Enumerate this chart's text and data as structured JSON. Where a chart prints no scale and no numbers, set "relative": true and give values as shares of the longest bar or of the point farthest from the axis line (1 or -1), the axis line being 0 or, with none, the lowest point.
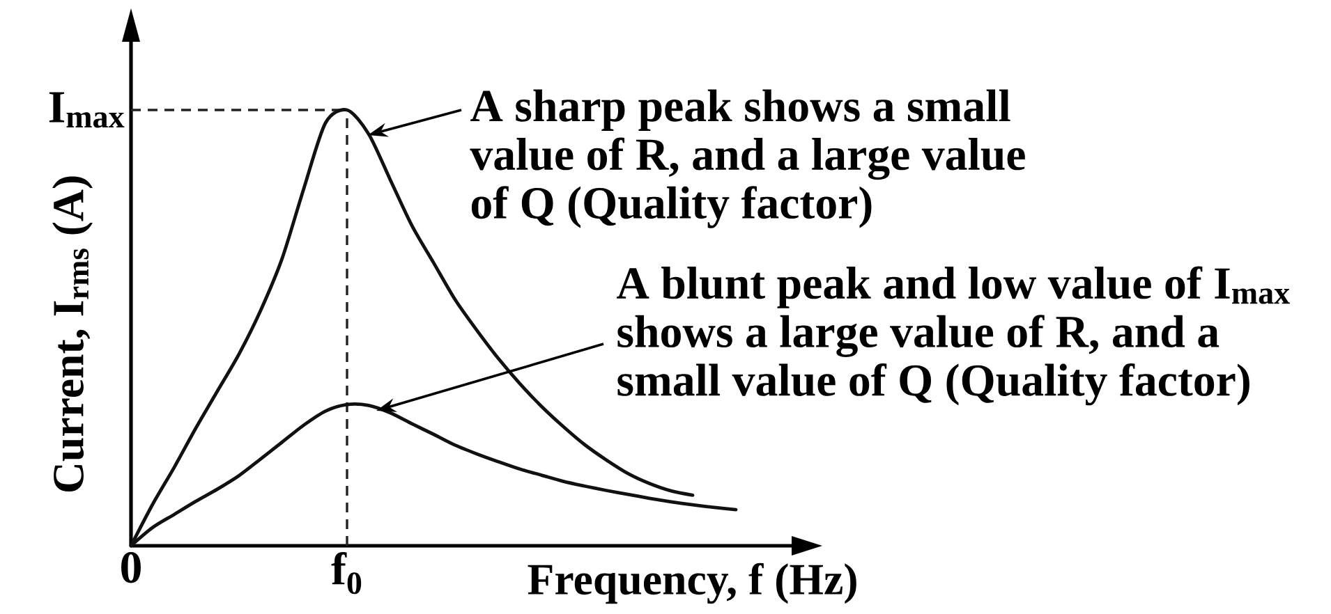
{
  "chart_data": {
    "type": "line",
    "relative": true,
    "xlabel": "Frequency, f (Hz)",
    "ylabel": "Current, I$_{rms}$ (A)",
    "categories": [
      "0",
      null,
      null,
      null,
      null,
      null,
      null,
      null,
      null,
      null,
      "f$_{0}$",
      null,
      null,
      null,
      null,
      null,
      null,
      null,
      null,
      null,
      null,
      null,
      null,
      null,
      null,
      null,
      null,
      null,
      null
    ],
    "series": [
      {
        "color": "#111111",
        "values": [
          0,
          0.095,
          0.18,
          0.27,
          0.355,
          0.44,
          0.54,
          0.66,
          0.82,
          0.97,
          1,
          0.945,
          0.84,
          0.735,
          0.65,
          0.565,
          0.495,
          0.43,
          0.372,
          0.32,
          0.274,
          0.232,
          0.197,
          0.166,
          0.143,
          0.126,
          0.116,
          null,
          null
        ]
      },
      {
        "color": "#111111",
        "values": [
          0,
          0.042,
          0.072,
          0.102,
          0.13,
          0.161,
          0.199,
          0.238,
          0.277,
          0.309,
          0.324,
          0.322,
          0.305,
          0.28,
          0.256,
          0.231,
          0.211,
          0.193,
          0.176,
          0.162,
          0.148,
          0.137,
          0.127,
          0.118,
          0.109,
          0.101,
          0.094,
          0.088,
          0.083
        ]
      }
    ],
    "ref_lines": [
      {
        "axis": "y",
        "value": 1,
        "label": "I$_{max}$",
        "line_style": "dashed",
        "color": "#222222"
      },
      {
        "axis": "x",
        "value": "f$_{0}$",
        "line_style": "dashed",
        "color": "#222222"
      }
    ],
    "annotations": [
      "A sharp peak shows a small value of R, and a large value of Q (Quality factor)",
      "A blunt peak and low value of I$_{max}$ shows a large value of R, and a small value of Q (Quality factor)"
    ]
  }
}
